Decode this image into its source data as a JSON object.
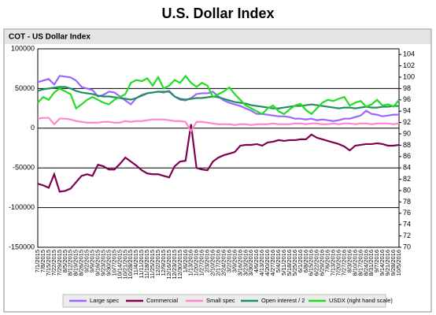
{
  "chart_data": {
    "type": "line",
    "title": "U.S. Dollar Index",
    "subtitle": "COT - US Dollar Index",
    "categories": [
      "7/1/2015",
      "7/8/2015",
      "7/15/2015",
      "7/22/2015",
      "7/29/2015",
      "8/5/2015",
      "8/12/2015",
      "8/19/2015",
      "8/26/2015",
      "9/2/2015",
      "9/9/2015",
      "9/16/2015",
      "9/23/2015",
      "9/30/2015",
      "10/7/2015",
      "10/14/2015",
      "10/21/2015",
      "10/28/2015",
      "11/4/2015",
      "11/11/2015",
      "11/18/2015",
      "11/25/2015",
      "12/2/2015",
      "12/9/2015",
      "12/16/2015",
      "12/23/2015",
      "12/30/2015",
      "1/6/2016",
      "1/13/2016",
      "1/20/2016",
      "1/27/2016",
      "2/3/2016",
      "2/10/2016",
      "2/17/2016",
      "2/24/2016",
      "3/2/2016",
      "3/9/2016",
      "3/16/2016",
      "3/23/2016",
      "3/30/2016",
      "4/6/2016",
      "4/13/2016",
      "4/20/2016",
      "4/27/2016",
      "5/4/2016",
      "5/11/2016",
      "5/18/2016",
      "5/25/2016",
      "6/1/2016",
      "6/8/2016",
      "6/15/2016",
      "6/22/2016",
      "6/29/2016",
      "7/6/2016",
      "7/13/2016",
      "7/20/2016",
      "7/27/2016",
      "8/3/2016",
      "8/10/2016",
      "8/17/2016",
      "8/24/2016",
      "8/31/2016",
      "9/7/2016",
      "9/14/2016",
      "9/21/2016",
      "9/28/2016",
      "10/5/2016"
    ],
    "series": [
      {
        "name": "Large spec",
        "color": "#9966ff",
        "values": [
          58000,
          60000,
          62000,
          55000,
          66000,
          65000,
          64000,
          60000,
          52000,
          50000,
          48000,
          40000,
          42000,
          46000,
          45000,
          40000,
          35000,
          30000,
          38000,
          42000,
          44000,
          45000,
          46000,
          45000,
          47000,
          40000,
          36000,
          35000,
          38000,
          43000,
          44000,
          44000,
          46000,
          40000,
          35000,
          32000,
          30000,
          28000,
          25000,
          22000,
          18000,
          18000,
          17000,
          16000,
          15000,
          15000,
          14000,
          12000,
          12000,
          11000,
          12000,
          10000,
          11000,
          10000,
          9000,
          10000,
          12000,
          12000,
          14000,
          16000,
          22000,
          18000,
          17000,
          15000,
          16000,
          17000,
          17000
        ]
      },
      {
        "name": "Commercial",
        "color": "#800050",
        "values": [
          -70000,
          -72000,
          -75000,
          -58000,
          -80000,
          -79000,
          -76000,
          -68000,
          -60000,
          -58000,
          -60000,
          -46000,
          -48000,
          -52000,
          -52000,
          -45000,
          -37000,
          -42000,
          -47000,
          -53000,
          -57000,
          -58000,
          -58000,
          -60000,
          -62000,
          -48000,
          -42000,
          -41000,
          5000,
          -50000,
          -52000,
          -53000,
          -42000,
          -37000,
          -34000,
          -32000,
          -30000,
          -22000,
          -21000,
          -21000,
          -20000,
          -22000,
          -18000,
          -17000,
          -15000,
          -16000,
          -15000,
          -15000,
          -14000,
          -14000,
          -8000,
          -12000,
          -14000,
          -16000,
          -18000,
          -20000,
          -23000,
          -28000,
          -22000,
          -21000,
          -20000,
          -20000,
          -19000,
          -20000,
          -22000,
          -22000,
          -21000
        ]
      },
      {
        "name": "Small spec",
        "color": "#ff88cc",
        "values": [
          12000,
          13000,
          13000,
          5000,
          12000,
          12000,
          11000,
          9000,
          8000,
          7000,
          7000,
          7000,
          8000,
          8000,
          7000,
          7000,
          9000,
          8000,
          9000,
          9000,
          10000,
          11000,
          11000,
          11000,
          10000,
          9000,
          9000,
          8000,
          -4000,
          8000,
          8000,
          7000,
          6000,
          5000,
          5000,
          5000,
          4000,
          5000,
          5000,
          4000,
          5000,
          5000,
          5000,
          6000,
          5000,
          5000,
          5000,
          6000,
          6000,
          5000,
          6000,
          6000,
          5000,
          5000,
          6000,
          5000,
          6000,
          6000,
          5000,
          6000,
          6000,
          5000,
          6000,
          6000,
          6000,
          5000,
          6000
        ]
      },
      {
        "name": "Open interest / 2",
        "color": "#1f8f5f",
        "values": [
          47000,
          49000,
          50000,
          51000,
          52000,
          52000,
          50000,
          47000,
          45000,
          44000,
          43000,
          41000,
          40000,
          40000,
          39000,
          38000,
          37000,
          36000,
          38000,
          41000,
          44000,
          45000,
          46000,
          46000,
          46000,
          40000,
          37000,
          36000,
          37000,
          38000,
          38000,
          39000,
          40000,
          39000,
          37000,
          35000,
          33000,
          32000,
          31000,
          29000,
          28000,
          27000,
          26000,
          25000,
          25000,
          26000,
          27000,
          28000,
          28000,
          29000,
          30000,
          29000,
          28000,
          27000,
          26000,
          25000,
          26000,
          26000,
          25000,
          26000,
          27000,
          26000,
          26000,
          27000,
          27000,
          28000,
          28000
        ]
      },
      {
        "name": "USDX (right hand scale)",
        "color": "#22dd22",
        "axis": "y2",
        "values": [
          95.5,
          96.5,
          96.0,
          97.3,
          98.0,
          97.5,
          97.0,
          94.5,
          95.2,
          96.0,
          96.5,
          96.0,
          95.5,
          95.2,
          96.0,
          96.5,
          97.0,
          99.0,
          99.5,
          99.3,
          99.8,
          98.5,
          100.0,
          98.0,
          98.5,
          99.5,
          99.0,
          100.2,
          99.0,
          98.3,
          99.0,
          98.5,
          96.5,
          97.0,
          97.5,
          98.2,
          97.0,
          96.0,
          95.0,
          94.5,
          94.0,
          93.5,
          94.5,
          95.0,
          94.0,
          93.5,
          94.3,
          95.0,
          95.3,
          94.2,
          93.5,
          94.5,
          95.5,
          96.0,
          95.8,
          96.2,
          96.5,
          95.0,
          95.5,
          95.8,
          94.8,
          95.2,
          96.0,
          95.0,
          95.2,
          94.8,
          96.0
        ]
      }
    ],
    "ylim": [
      -150000,
      100000
    ],
    "yticks": [
      -150000,
      -100000,
      -50000,
      0,
      50000,
      100000
    ],
    "y2lim": [
      70,
      105
    ],
    "y2ticks": [
      70,
      72,
      74,
      76,
      78,
      80,
      82,
      84,
      86,
      88,
      90,
      92,
      94,
      96,
      98,
      100,
      102,
      104
    ],
    "grid": true,
    "legend": "bottom"
  }
}
